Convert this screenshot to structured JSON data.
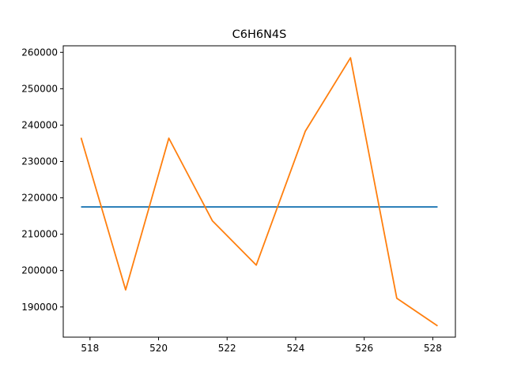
{
  "chart_data": {
    "type": "line",
    "title": "C6H6N4S",
    "xlabel": "",
    "ylabel": "",
    "xlim": [
      517.22,
      528.66
    ],
    "ylim": [
      181700,
      261800
    ],
    "grid": false,
    "x_ticks": [
      518,
      520,
      522,
      524,
      526,
      528
    ],
    "x_tick_labels": [
      "518",
      "520",
      "522",
      "524",
      "526",
      "528"
    ],
    "y_ticks": [
      190000,
      200000,
      210000,
      220000,
      230000,
      240000,
      250000,
      260000
    ],
    "y_tick_labels": [
      "190000",
      "200000",
      "210000",
      "220000",
      "230000",
      "240000",
      "250000",
      "260000"
    ],
    "series": [
      {
        "color": "#1f77b4",
        "x": [
          517.74,
          528.14
        ],
        "y": [
          217500,
          217500
        ]
      },
      {
        "color": "#ff7f0e",
        "x": [
          517.74,
          519.04,
          520.3,
          521.57,
          522.85,
          524.28,
          525.6,
          526.95,
          528.14
        ],
        "y": [
          236500,
          194700,
          236400,
          213700,
          201500,
          238300,
          258500,
          192400,
          184800
        ]
      }
    ]
  }
}
